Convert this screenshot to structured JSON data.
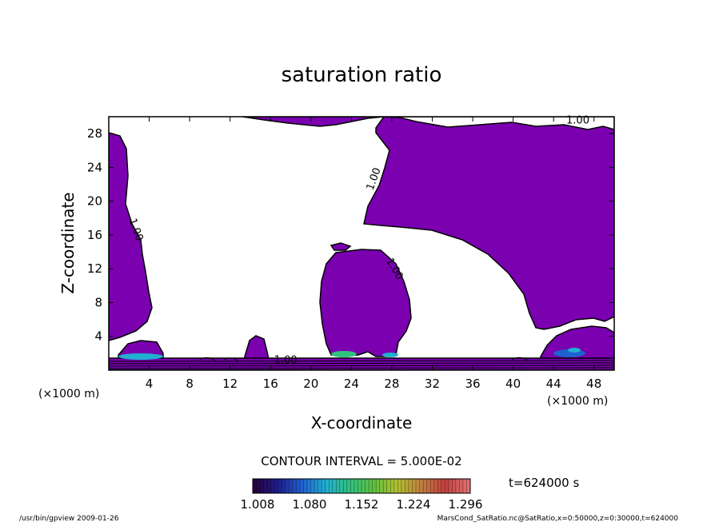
{
  "chart_data": {
    "type": "contour",
    "title": "saturation ratio",
    "xlabel": "X-coordinate",
    "ylabel": "Z-coordinate",
    "x_unit": "(×1000 m)",
    "y_unit": "(×1000 m)",
    "xlim": [
      0,
      50
    ],
    "ylim": [
      0,
      30
    ],
    "x_ticks": [
      4,
      8,
      12,
      16,
      20,
      24,
      28,
      32,
      36,
      40,
      44,
      48
    ],
    "y_ticks": [
      4,
      8,
      12,
      16,
      20,
      24,
      28
    ],
    "contour_labels": [
      {
        "text": "1.00",
        "x": 2.4,
        "y": 16.5
      },
      {
        "text": "1.00",
        "x": 26.5,
        "y": 22.5
      },
      {
        "text": "1.00",
        "x": 28.0,
        "y": 11.8
      },
      {
        "text": "1.00",
        "x": 46.4,
        "y": 29.2
      },
      {
        "text": "1.00",
        "x": 17.5,
        "y": 0.8
      }
    ],
    "contour_interval_text": "CONTOUR INTERVAL = 5.000E-02",
    "time_text": "t=624000 s",
    "colorbar": {
      "ticks": [
        "1.008",
        "1.080",
        "1.152",
        "1.224",
        "1.296"
      ],
      "colors": [
        "#2a0040",
        "#1e1e8c",
        "#2060d0",
        "#20b0d0",
        "#30c080",
        "#60c040",
        "#b0c030",
        "#c08040",
        "#c04040",
        "#e07070"
      ]
    },
    "fill_color": "#7a00b0"
  },
  "footer": {
    "left": "/usr/bin/gpview   2009-01-26",
    "right": "MarsCond_SatRatio.nc@SatRatio,x=0:50000,z=0:30000,t=624000"
  }
}
